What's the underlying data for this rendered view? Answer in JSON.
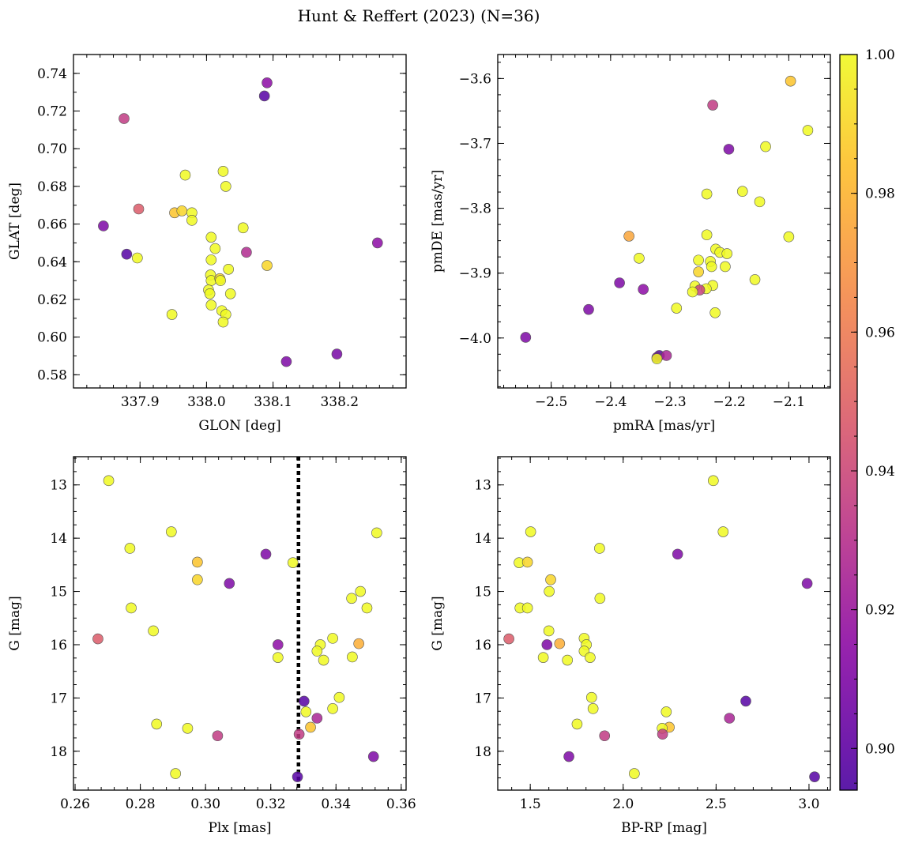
{
  "figure": {
    "title": "Hunt & Reffert (2023) (N=36)"
  },
  "colorbar": {
    "ticks": [
      "0.90",
      "0.92",
      "0.94",
      "0.96",
      "0.98",
      "1.00"
    ],
    "tick_values": [
      0.9,
      0.92,
      0.94,
      0.96,
      0.98,
      1.0
    ],
    "range": [
      0.894,
      1.0
    ],
    "colormap": "plasma"
  },
  "chart_data": [
    {
      "id": "glon_glat",
      "type": "scatter",
      "xlabel": "GLON [deg]",
      "ylabel": "GLAT [deg]",
      "xlim": [
        337.8,
        338.3
      ],
      "ylim": [
        0.573,
        0.75
      ],
      "xticks": [
        337.9,
        338.0,
        338.1,
        338.2
      ],
      "xticklabels": [
        "337.9",
        "338.0",
        "338.1",
        "338.2"
      ],
      "yticks": [
        0.58,
        0.6,
        0.62,
        0.64,
        0.66,
        0.68,
        0.7,
        0.72,
        0.74
      ],
      "yticklabels": [
        "0.58",
        "0.60",
        "0.62",
        "0.64",
        "0.66",
        "0.68",
        "0.70",
        "0.72",
        "0.74"
      ],
      "points": [
        {
          "x": 338.091,
          "y": 0.735,
          "c": 0.915
        },
        {
          "x": 338.087,
          "y": 0.728,
          "c": 0.897
        },
        {
          "x": 337.876,
          "y": 0.716,
          "c": 0.935
        },
        {
          "x": 338.025,
          "y": 0.688,
          "c": 1.0
        },
        {
          "x": 337.968,
          "y": 0.686,
          "c": 1.0
        },
        {
          "x": 338.029,
          "y": 0.68,
          "c": 1.0
        },
        {
          "x": 337.898,
          "y": 0.668,
          "c": 0.948
        },
        {
          "x": 337.952,
          "y": 0.666,
          "c": 0.985
        },
        {
          "x": 337.963,
          "y": 0.667,
          "c": 0.99
        },
        {
          "x": 337.978,
          "y": 0.666,
          "c": 1.0
        },
        {
          "x": 337.978,
          "y": 0.662,
          "c": 1.0
        },
        {
          "x": 337.845,
          "y": 0.659,
          "c": 0.91
        },
        {
          "x": 338.055,
          "y": 0.658,
          "c": 1.0
        },
        {
          "x": 338.257,
          "y": 0.65,
          "c": 0.915
        },
        {
          "x": 338.007,
          "y": 0.653,
          "c": 1.0
        },
        {
          "x": 338.013,
          "y": 0.647,
          "c": 1.0
        },
        {
          "x": 338.06,
          "y": 0.645,
          "c": 0.928
        },
        {
          "x": 337.88,
          "y": 0.644,
          "c": 0.897
        },
        {
          "x": 337.896,
          "y": 0.642,
          "c": 1.0
        },
        {
          "x": 338.007,
          "y": 0.641,
          "c": 1.0
        },
        {
          "x": 338.091,
          "y": 0.638,
          "c": 0.99
        },
        {
          "x": 338.033,
          "y": 0.636,
          "c": 1.0
        },
        {
          "x": 338.006,
          "y": 0.633,
          "c": 1.0
        },
        {
          "x": 338.007,
          "y": 0.63,
          "c": 1.0
        },
        {
          "x": 338.02,
          "y": 0.631,
          "c": 0.99
        },
        {
          "x": 338.021,
          "y": 0.63,
          "c": 1.0
        },
        {
          "x": 338.003,
          "y": 0.625,
          "c": 1.0
        },
        {
          "x": 338.005,
          "y": 0.623,
          "c": 1.0
        },
        {
          "x": 338.036,
          "y": 0.623,
          "c": 1.0
        },
        {
          "x": 338.007,
          "y": 0.617,
          "c": 1.0
        },
        {
          "x": 338.023,
          "y": 0.614,
          "c": 1.0
        },
        {
          "x": 337.948,
          "y": 0.612,
          "c": 1.0
        },
        {
          "x": 338.029,
          "y": 0.612,
          "c": 1.0
        },
        {
          "x": 338.025,
          "y": 0.608,
          "c": 1.0
        },
        {
          "x": 338.196,
          "y": 0.591,
          "c": 0.908
        },
        {
          "x": 338.12,
          "y": 0.587,
          "c": 0.91
        }
      ]
    },
    {
      "id": "pmra_pmde",
      "type": "scatter",
      "xlabel": "pmRA [mas/yr]",
      "ylabel": "pmDE [mas/yr]",
      "xlim": [
        -2.59,
        -2.03
      ],
      "ylim": [
        -4.077,
        -3.563
      ],
      "xticks": [
        -2.5,
        -2.4,
        -2.3,
        -2.2,
        -2.1
      ],
      "xticklabels": [
        "−2.5",
        "−2.4",
        "−2.3",
        "−2.2",
        "−2.1"
      ],
      "yticks": [
        -4.0,
        -3.9,
        -3.8,
        -3.7,
        -3.6
      ],
      "yticklabels": [
        "−4.0",
        "−3.9",
        "−3.8",
        "−3.7",
        "−3.6"
      ],
      "points": [
        {
          "x": -2.097,
          "y": -3.604,
          "c": 0.985
        },
        {
          "x": -2.228,
          "y": -3.641,
          "c": 0.935
        },
        {
          "x": -2.068,
          "y": -3.68,
          "c": 1.0
        },
        {
          "x": -2.201,
          "y": -3.709,
          "c": 0.91
        },
        {
          "x": -2.139,
          "y": -3.705,
          "c": 1.0
        },
        {
          "x": -2.178,
          "y": -3.774,
          "c": 1.0
        },
        {
          "x": -2.238,
          "y": -3.778,
          "c": 1.0
        },
        {
          "x": -2.149,
          "y": -3.79,
          "c": 1.0
        },
        {
          "x": -2.238,
          "y": -3.841,
          "c": 1.0
        },
        {
          "x": -2.1,
          "y": -3.844,
          "c": 1.0
        },
        {
          "x": -2.369,
          "y": -3.843,
          "c": 0.975
        },
        {
          "x": -2.352,
          "y": -3.877,
          "c": 1.0
        },
        {
          "x": -2.223,
          "y": -3.863,
          "c": 1.0
        },
        {
          "x": -2.216,
          "y": -3.868,
          "c": 1.0
        },
        {
          "x": -2.204,
          "y": -3.87,
          "c": 1.0
        },
        {
          "x": -2.232,
          "y": -3.882,
          "c": 1.0
        },
        {
          "x": -2.252,
          "y": -3.88,
          "c": 1.0
        },
        {
          "x": -2.23,
          "y": -3.89,
          "c": 1.0
        },
        {
          "x": -2.207,
          "y": -3.89,
          "c": 1.0
        },
        {
          "x": -2.252,
          "y": -3.898,
          "c": 0.99
        },
        {
          "x": -2.157,
          "y": -3.91,
          "c": 1.0
        },
        {
          "x": -2.385,
          "y": -3.915,
          "c": 0.91
        },
        {
          "x": -2.228,
          "y": -3.919,
          "c": 1.0
        },
        {
          "x": -2.258,
          "y": -3.92,
          "c": 1.0
        },
        {
          "x": -2.239,
          "y": -3.924,
          "c": 1.0
        },
        {
          "x": -2.25,
          "y": -3.926,
          "c": 0.938
        },
        {
          "x": -2.262,
          "y": -3.929,
          "c": 1.0
        },
        {
          "x": -2.345,
          "y": -3.925,
          "c": 0.915
        },
        {
          "x": -2.289,
          "y": -3.954,
          "c": 1.0
        },
        {
          "x": -2.437,
          "y": -3.956,
          "c": 0.91
        },
        {
          "x": -2.224,
          "y": -3.961,
          "c": 1.0
        },
        {
          "x": -2.543,
          "y": -3.999,
          "c": 0.91
        },
        {
          "x": -2.318,
          "y": -4.027,
          "c": 0.897
        },
        {
          "x": -2.322,
          "y": -4.03,
          "c": 0.91
        },
        {
          "x": -2.306,
          "y": -4.027,
          "c": 0.925
        },
        {
          "x": -2.322,
          "y": -4.032,
          "c": 1.0
        }
      ]
    },
    {
      "id": "plx_g",
      "type": "scatter",
      "xlabel": "Plx [mas]",
      "ylabel": "G [mag]",
      "xlim": [
        0.2595,
        0.3615
      ],
      "ylim": [
        18.73,
        12.47
      ],
      "y_inverted": true,
      "vline": 0.3285,
      "xticks": [
        0.26,
        0.28,
        0.3,
        0.32,
        0.34,
        0.36
      ],
      "xticklabels": [
        "0.26",
        "0.28",
        "0.30",
        "0.32",
        "0.34",
        "0.36"
      ],
      "yticks": [
        13,
        14,
        15,
        16,
        17,
        18
      ],
      "yticklabels": [
        "13",
        "14",
        "15",
        "16",
        "17",
        "18"
      ],
      "points": [
        {
          "x": 0.2703,
          "y": 12.92,
          "c": 1.0
        },
        {
          "x": 0.2895,
          "y": 13.88,
          "c": 1.0
        },
        {
          "x": 0.3525,
          "y": 13.9,
          "c": 1.0
        },
        {
          "x": 0.2768,
          "y": 14.19,
          "c": 1.0
        },
        {
          "x": 0.3185,
          "y": 14.3,
          "c": 0.91
        },
        {
          "x": 0.2975,
          "y": 14.45,
          "c": 0.985
        },
        {
          "x": 0.3268,
          "y": 14.46,
          "c": 1.0
        },
        {
          "x": 0.2975,
          "y": 14.78,
          "c": 0.99
        },
        {
          "x": 0.3073,
          "y": 14.85,
          "c": 0.91
        },
        {
          "x": 0.3475,
          "y": 15.0,
          "c": 1.0
        },
        {
          "x": 0.3448,
          "y": 15.13,
          "c": 1.0
        },
        {
          "x": 0.2772,
          "y": 15.31,
          "c": 1.0
        },
        {
          "x": 0.3495,
          "y": 15.31,
          "c": 1.0
        },
        {
          "x": 0.284,
          "y": 15.74,
          "c": 1.0
        },
        {
          "x": 0.339,
          "y": 15.88,
          "c": 1.0
        },
        {
          "x": 0.267,
          "y": 15.89,
          "c": 0.948
        },
        {
          "x": 0.347,
          "y": 15.98,
          "c": 0.978
        },
        {
          "x": 0.3222,
          "y": 16.0,
          "c": 0.915
        },
        {
          "x": 0.3352,
          "y": 16.0,
          "c": 1.0
        },
        {
          "x": 0.3342,
          "y": 16.12,
          "c": 1.0
        },
        {
          "x": 0.3222,
          "y": 16.24,
          "c": 1.0
        },
        {
          "x": 0.345,
          "y": 16.23,
          "c": 1.0
        },
        {
          "x": 0.3362,
          "y": 16.29,
          "c": 1.0
        },
        {
          "x": 0.341,
          "y": 16.99,
          "c": 1.0
        },
        {
          "x": 0.3302,
          "y": 17.06,
          "c": 0.897
        },
        {
          "x": 0.339,
          "y": 17.2,
          "c": 1.0
        },
        {
          "x": 0.3308,
          "y": 17.26,
          "c": 1.0
        },
        {
          "x": 0.3342,
          "y": 17.38,
          "c": 0.925
        },
        {
          "x": 0.285,
          "y": 17.49,
          "c": 1.0
        },
        {
          "x": 0.3322,
          "y": 17.55,
          "c": 0.985
        },
        {
          "x": 0.2945,
          "y": 17.57,
          "c": 1.0
        },
        {
          "x": 0.3287,
          "y": 17.68,
          "c": 0.935
        },
        {
          "x": 0.3037,
          "y": 17.71,
          "c": 0.935
        },
        {
          "x": 0.3515,
          "y": 18.1,
          "c": 0.91
        },
        {
          "x": 0.2908,
          "y": 18.42,
          "c": 1.0
        },
        {
          "x": 0.3282,
          "y": 18.48,
          "c": 0.897
        }
      ]
    },
    {
      "id": "bprp_g",
      "type": "scatter",
      "xlabel": "BP-RP [mag]",
      "ylabel": "G [mag]",
      "xlim": [
        1.325,
        3.115
      ],
      "ylim": [
        18.73,
        12.47
      ],
      "y_inverted": true,
      "xticks": [
        1.5,
        2.0,
        2.5,
        3.0
      ],
      "xticklabels": [
        "1.5",
        "2.0",
        "2.5",
        "3.0"
      ],
      "yticks": [
        13,
        14,
        15,
        16,
        17,
        18
      ],
      "yticklabels": [
        "13",
        "14",
        "15",
        "16",
        "17",
        "18"
      ],
      "points": [
        {
          "x": 2.485,
          "y": 12.92,
          "c": 1.0
        },
        {
          "x": 1.502,
          "y": 13.88,
          "c": 1.0
        },
        {
          "x": 2.538,
          "y": 13.88,
          "c": 1.0
        },
        {
          "x": 1.873,
          "y": 14.19,
          "c": 1.0
        },
        {
          "x": 2.293,
          "y": 14.3,
          "c": 0.91
        },
        {
          "x": 1.44,
          "y": 14.46,
          "c": 1.0
        },
        {
          "x": 1.485,
          "y": 14.45,
          "c": 0.99
        },
        {
          "x": 1.61,
          "y": 14.78,
          "c": 0.99
        },
        {
          "x": 2.99,
          "y": 14.85,
          "c": 0.91
        },
        {
          "x": 1.602,
          "y": 15.0,
          "c": 1.0
        },
        {
          "x": 1.875,
          "y": 15.13,
          "c": 1.0
        },
        {
          "x": 1.445,
          "y": 15.31,
          "c": 1.0
        },
        {
          "x": 1.485,
          "y": 15.31,
          "c": 1.0
        },
        {
          "x": 1.6,
          "y": 15.74,
          "c": 1.0
        },
        {
          "x": 1.79,
          "y": 15.88,
          "c": 1.0
        },
        {
          "x": 1.385,
          "y": 15.89,
          "c": 0.948
        },
        {
          "x": 1.59,
          "y": 16.0,
          "c": 0.91
        },
        {
          "x": 1.658,
          "y": 15.98,
          "c": 0.978
        },
        {
          "x": 1.802,
          "y": 16.0,
          "c": 1.0
        },
        {
          "x": 1.79,
          "y": 16.12,
          "c": 1.0
        },
        {
          "x": 1.57,
          "y": 16.24,
          "c": 1.0
        },
        {
          "x": 1.822,
          "y": 16.24,
          "c": 1.0
        },
        {
          "x": 1.7,
          "y": 16.29,
          "c": 1.0
        },
        {
          "x": 1.83,
          "y": 16.99,
          "c": 1.0
        },
        {
          "x": 2.66,
          "y": 17.06,
          "c": 0.897
        },
        {
          "x": 1.838,
          "y": 17.2,
          "c": 1.0
        },
        {
          "x": 2.232,
          "y": 17.26,
          "c": 1.0
        },
        {
          "x": 2.572,
          "y": 17.38,
          "c": 0.925
        },
        {
          "x": 1.752,
          "y": 17.49,
          "c": 1.0
        },
        {
          "x": 2.248,
          "y": 17.55,
          "c": 0.985
        },
        {
          "x": 2.21,
          "y": 17.57,
          "c": 1.0
        },
        {
          "x": 2.212,
          "y": 17.68,
          "c": 0.935
        },
        {
          "x": 1.9,
          "y": 17.71,
          "c": 0.935
        },
        {
          "x": 1.708,
          "y": 18.1,
          "c": 0.91
        },
        {
          "x": 2.06,
          "y": 18.42,
          "c": 1.0
        },
        {
          "x": 3.03,
          "y": 18.48,
          "c": 0.897
        }
      ]
    }
  ]
}
